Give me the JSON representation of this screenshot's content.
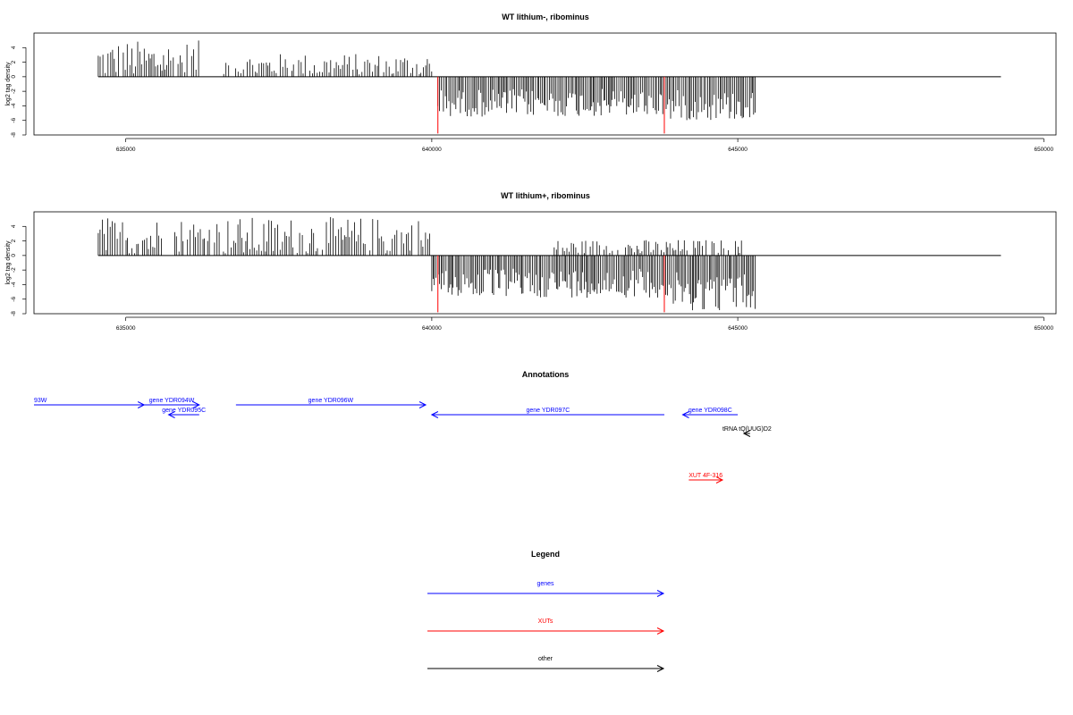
{
  "colors": {
    "gene": "#0000ff",
    "xut": "#ff0000",
    "other": "#000000",
    "marker": "#ff0000"
  },
  "chart_data": [
    {
      "type": "bar",
      "title": "WT lithium-, ribominus",
      "ylabel": "log2 tag density",
      "xlim": [
        633500,
        650200
      ],
      "ylim": [
        -8,
        6
      ],
      "xticks": [
        "635000",
        "640000",
        "645000",
        "650000"
      ],
      "yticks": [
        "4",
        "2",
        "0",
        "-2",
        "-4",
        "-6",
        "-8"
      ],
      "baseline": {
        "start": 634550,
        "end": 649300
      },
      "markers_x": [
        640100,
        643800
      ],
      "positive_regions": [
        {
          "start": 634550,
          "end": 636200,
          "max": 5
        },
        {
          "start": 636600,
          "end": 640000,
          "max": 3.2
        }
      ],
      "negative_regions": [
        {
          "start": 640100,
          "end": 643800,
          "min": -5.5
        },
        {
          "start": 643800,
          "end": 645300,
          "min": -6
        }
      ]
    },
    {
      "type": "bar",
      "title": "WT lithium+, ribominus",
      "ylabel": "log2 tag density",
      "xlim": [
        633500,
        650200
      ],
      "ylim": [
        -8,
        6
      ],
      "xticks": [
        "635000",
        "640000",
        "645000",
        "650000"
      ],
      "yticks": [
        "4",
        "2",
        "0",
        "-2",
        "-4",
        "-6",
        "-8"
      ],
      "baseline": {
        "start": 634550,
        "end": 649300
      },
      "markers_x": [
        640100,
        643800
      ],
      "positive_regions": [
        {
          "start": 634550,
          "end": 640000,
          "max": 5.3
        },
        {
          "start": 642000,
          "end": 645100,
          "max": 2.2
        }
      ],
      "negative_regions": [
        {
          "start": 640000,
          "end": 643800,
          "min": -5.8
        },
        {
          "start": 643800,
          "end": 645300,
          "min": -7.6
        }
      ]
    }
  ],
  "annotations": {
    "title": "Annotations",
    "items": [
      {
        "label": "93W",
        "kind": "gene",
        "x1": 633500,
        "x2": 635300,
        "dir": "right",
        "row": 0
      },
      {
        "label": "gene YDR094W",
        "kind": "gene",
        "x1": 635300,
        "x2": 636200,
        "dir": "right",
        "row": 0
      },
      {
        "label": "gene YDR095C",
        "kind": "gene",
        "x1": 636200,
        "x2": 635700,
        "dir": "left",
        "row": 1
      },
      {
        "label": "gene YDR096W",
        "kind": "gene",
        "x1": 636800,
        "x2": 639900,
        "dir": "right",
        "row": 0
      },
      {
        "label": "gene YDR097C",
        "kind": "gene",
        "x1": 643800,
        "x2": 640000,
        "dir": "left",
        "row": 1
      },
      {
        "label": "gene YDR098C",
        "kind": "gene",
        "x1": 645000,
        "x2": 644100,
        "dir": "left",
        "row": 1
      },
      {
        "label": "tRNA tQ(UUG)D2",
        "kind": "other",
        "x1": 645200,
        "x2": 645100,
        "dir": "left",
        "row": 2
      },
      {
        "label": "XUT 4F-316",
        "kind": "xut",
        "x1": 644200,
        "x2": 644750,
        "dir": "right",
        "row": 3
      }
    ]
  },
  "legend": {
    "title": "Legend",
    "items": [
      {
        "label": "genes",
        "kind": "gene"
      },
      {
        "label": "XUTs",
        "kind": "xut"
      },
      {
        "label": "other",
        "kind": "other"
      }
    ]
  }
}
